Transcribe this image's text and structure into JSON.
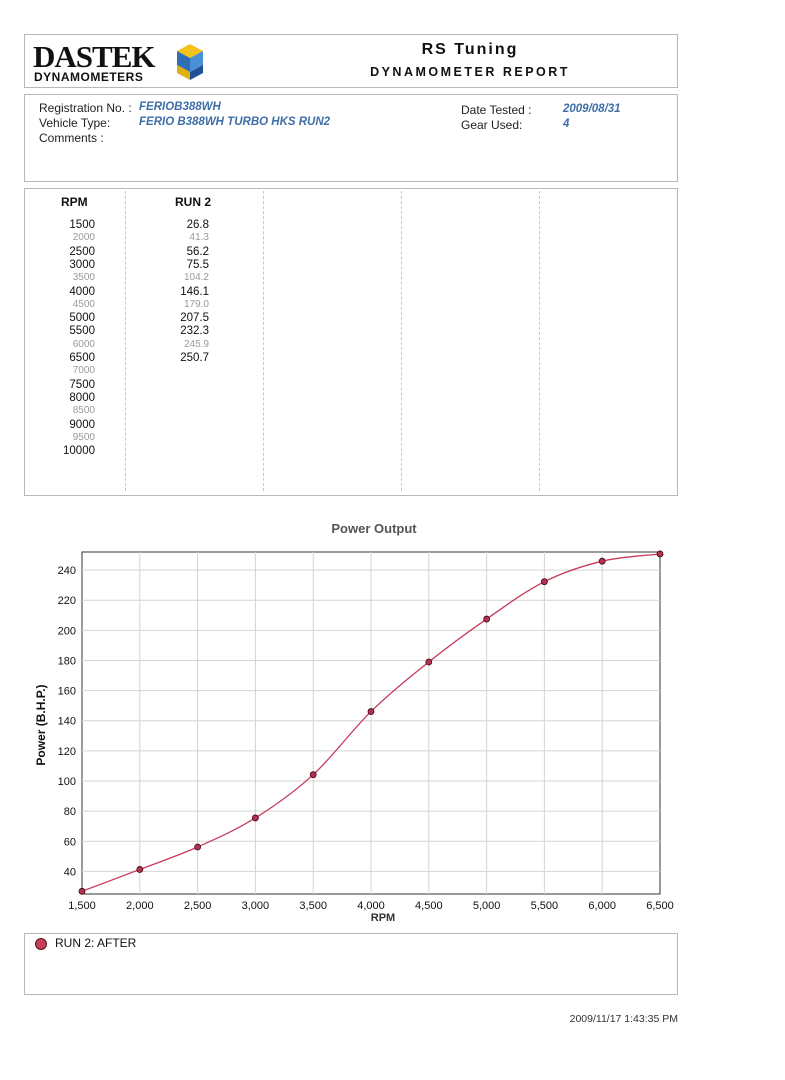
{
  "header": {
    "logo_word": "DASTEK",
    "logo_sub": "DYNAMOMETERS",
    "title": "RS Tuning",
    "subtitle": "DYNAMOMETER REPORT"
  },
  "info": {
    "registration_label": "Registration No. :",
    "registration_value": "FERIOB388WH",
    "vehicle_label": "Vehicle Type:",
    "vehicle_value": "FERIO B388WH TURBO HKS RUN2",
    "comments_label": "Comments :",
    "date_label": "Date Tested :",
    "date_value": "2009/08/31",
    "gear_label": "Gear Used:",
    "gear_value": "4"
  },
  "table": {
    "col_rpm": "RPM",
    "col_run": "RUN 2",
    "rpm": [
      "1500",
      "2000",
      "2500",
      "3000",
      "3500",
      "4000",
      "4500",
      "5000",
      "5500",
      "6000",
      "6500",
      "7000",
      "7500",
      "8000",
      "8500",
      "9000",
      "9500",
      "10000"
    ],
    "run2": [
      "26.8",
      "41.3",
      "56.2",
      "75.5",
      "104.2",
      "146.1",
      "179.0",
      "207.5",
      "232.3",
      "245.9",
      "250.7"
    ]
  },
  "chart_data": {
    "type": "line",
    "title": "Power Output",
    "xlabel": "RPM",
    "ylabel": "Power (B.H.P.)",
    "x": [
      1500,
      2000,
      2500,
      3000,
      3500,
      4000,
      4500,
      5000,
      5500,
      6000,
      6500
    ],
    "series": [
      {
        "name": "RUN 2: AFTER",
        "values": [
          26.8,
          41.3,
          56.2,
          75.5,
          104.2,
          146.1,
          179.0,
          207.5,
          232.3,
          245.9,
          250.7
        ],
        "color": "#c83a5a"
      }
    ],
    "xlim": [
      1500,
      6500
    ],
    "ylim": [
      25,
      252
    ],
    "xticks": [
      "1,500",
      "2,000",
      "2,500",
      "3,000",
      "3,500",
      "4,000",
      "4,500",
      "5,000",
      "5,500",
      "6,000",
      "6,500"
    ],
    "yticks": [
      "40",
      "60",
      "80",
      "100",
      "120",
      "140",
      "160",
      "180",
      "200",
      "220",
      "240"
    ],
    "ytick_values": [
      40,
      60,
      80,
      100,
      120,
      140,
      160,
      180,
      200,
      220,
      240
    ],
    "grid": true,
    "legend": "bottom"
  },
  "legend": {
    "label": "RUN 2: AFTER"
  },
  "timestamp": "2009/11/17 1:43:35 PM"
}
